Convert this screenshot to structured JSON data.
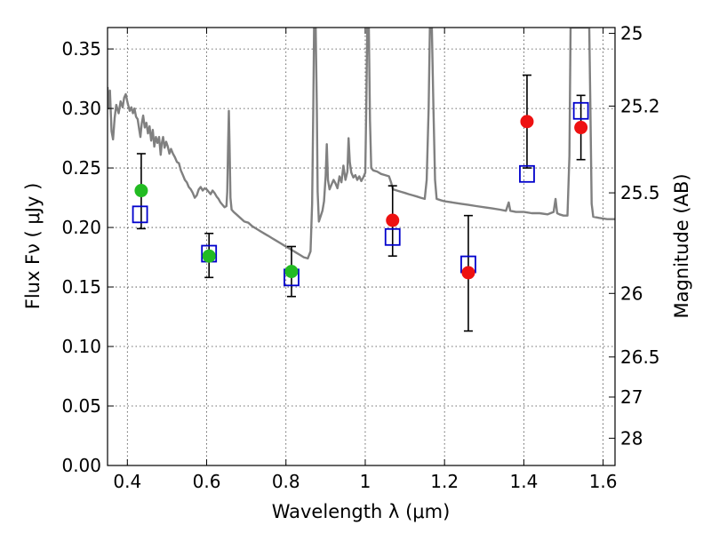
{
  "chart_data": {
    "type": "scatter",
    "title": "",
    "xlabel": "Wavelength  λ (μm)",
    "ylabel": "Flux  Fν  ( μJy )",
    "y2label": "Magnitude (AB)",
    "xlim": [
      0.35,
      1.63
    ],
    "ylim": [
      0.0,
      0.368
    ],
    "grid": true,
    "x_ticks": [
      0.4,
      0.6,
      0.8,
      1.0,
      1.2,
      1.4,
      1.6
    ],
    "x_tick_labels": [
      "0.4",
      "0.6",
      "0.8",
      "1",
      "1.2",
      "1.4",
      "1.6"
    ],
    "y_ticks": [
      0.0,
      0.05,
      0.1,
      0.15,
      0.2,
      0.25,
      0.3,
      0.35
    ],
    "y_tick_labels": [
      "0.00",
      "0.05",
      "0.10",
      "0.15",
      "0.20",
      "0.25",
      "0.30",
      "0.35"
    ],
    "y2_ticks": [
      {
        "label": "25",
        "flux": 0.3631
      },
      {
        "label": "25.2",
        "flux": 0.302
      },
      {
        "label": "25.5",
        "flux": 0.2291
      },
      {
        "label": "26",
        "flux": 0.1446
      },
      {
        "label": "26.5",
        "flux": 0.0912
      },
      {
        "label": "27",
        "flux": 0.0575
      },
      {
        "label": "28",
        "flux": 0.0229
      }
    ],
    "observed": [
      {
        "x": 0.435,
        "y": 0.231,
        "err_low": 0.199,
        "err_high": 0.262,
        "color": "#22bb22"
      },
      {
        "x": 0.606,
        "y": 0.176,
        "err_low": 0.158,
        "err_high": 0.195,
        "color": "#22bb22"
      },
      {
        "x": 0.814,
        "y": 0.163,
        "err_low": 0.142,
        "err_high": 0.184,
        "color": "#22bb22"
      },
      {
        "x": 1.069,
        "y": 0.206,
        "err_low": 0.176,
        "err_high": 0.235,
        "color": "#ee1111"
      },
      {
        "x": 1.26,
        "y": 0.162,
        "err_low": 0.113,
        "err_high": 0.21,
        "color": "#ee1111"
      },
      {
        "x": 1.408,
        "y": 0.289,
        "err_low": 0.25,
        "err_high": 0.328,
        "color": "#ee1111"
      },
      {
        "x": 1.544,
        "y": 0.284,
        "err_low": 0.257,
        "err_high": 0.311,
        "color": "#ee1111"
      }
    ],
    "model": [
      {
        "x": 0.432,
        "y": 0.211
      },
      {
        "x": 0.606,
        "y": 0.178
      },
      {
        "x": 0.814,
        "y": 0.158
      },
      {
        "x": 1.069,
        "y": 0.192
      },
      {
        "x": 1.26,
        "y": 0.169
      },
      {
        "x": 1.408,
        "y": 0.245
      },
      {
        "x": 1.544,
        "y": 0.298
      }
    ],
    "spectrum": [
      [
        0.35,
        0.318
      ],
      [
        0.353,
        0.3
      ],
      [
        0.356,
        0.315
      ],
      [
        0.36,
        0.281
      ],
      [
        0.364,
        0.274
      ],
      [
        0.368,
        0.292
      ],
      [
        0.372,
        0.303
      ],
      [
        0.378,
        0.296
      ],
      [
        0.383,
        0.306
      ],
      [
        0.388,
        0.301
      ],
      [
        0.392,
        0.309
      ],
      [
        0.396,
        0.312
      ],
      [
        0.401,
        0.304
      ],
      [
        0.406,
        0.298
      ],
      [
        0.41,
        0.301
      ],
      [
        0.414,
        0.296
      ],
      [
        0.418,
        0.3
      ],
      [
        0.422,
        0.293
      ],
      [
        0.426,
        0.291
      ],
      [
        0.43,
        0.282
      ],
      [
        0.433,
        0.276
      ],
      [
        0.436,
        0.287
      ],
      [
        0.44,
        0.294
      ],
      [
        0.444,
        0.284
      ],
      [
        0.448,
        0.288
      ],
      [
        0.452,
        0.279
      ],
      [
        0.456,
        0.285
      ],
      [
        0.46,
        0.273
      ],
      [
        0.464,
        0.282
      ],
      [
        0.468,
        0.268
      ],
      [
        0.472,
        0.276
      ],
      [
        0.476,
        0.271
      ],
      [
        0.48,
        0.276
      ],
      [
        0.484,
        0.261
      ],
      [
        0.487,
        0.271
      ],
      [
        0.49,
        0.276
      ],
      [
        0.494,
        0.267
      ],
      [
        0.498,
        0.272
      ],
      [
        0.502,
        0.268
      ],
      [
        0.506,
        0.262
      ],
      [
        0.51,
        0.266
      ],
      [
        0.515,
        0.262
      ],
      [
        0.52,
        0.259
      ],
      [
        0.525,
        0.255
      ],
      [
        0.53,
        0.254
      ],
      [
        0.535,
        0.248
      ],
      [
        0.54,
        0.244
      ],
      [
        0.545,
        0.24
      ],
      [
        0.55,
        0.238
      ],
      [
        0.555,
        0.234
      ],
      [
        0.56,
        0.232
      ],
      [
        0.565,
        0.229
      ],
      [
        0.57,
        0.225
      ],
      [
        0.575,
        0.227
      ],
      [
        0.58,
        0.232
      ],
      [
        0.585,
        0.234
      ],
      [
        0.59,
        0.231
      ],
      [
        0.595,
        0.233
      ],
      [
        0.6,
        0.232
      ],
      [
        0.605,
        0.23
      ],
      [
        0.61,
        0.228
      ],
      [
        0.615,
        0.231
      ],
      [
        0.62,
        0.229
      ],
      [
        0.625,
        0.226
      ],
      [
        0.63,
        0.224
      ],
      [
        0.635,
        0.221
      ],
      [
        0.64,
        0.219
      ],
      [
        0.645,
        0.217
      ],
      [
        0.65,
        0.218
      ],
      [
        0.652,
        0.23
      ],
      [
        0.654,
        0.267
      ],
      [
        0.656,
        0.298
      ],
      [
        0.658,
        0.265
      ],
      [
        0.66,
        0.225
      ],
      [
        0.663,
        0.215
      ],
      [
        0.668,
        0.213
      ],
      [
        0.675,
        0.211
      ],
      [
        0.685,
        0.208
      ],
      [
        0.695,
        0.205
      ],
      [
        0.705,
        0.204
      ],
      [
        0.715,
        0.201
      ],
      [
        0.725,
        0.199
      ],
      [
        0.735,
        0.197
      ],
      [
        0.745,
        0.195
      ],
      [
        0.755,
        0.193
      ],
      [
        0.765,
        0.191
      ],
      [
        0.775,
        0.189
      ],
      [
        0.785,
        0.187
      ],
      [
        0.795,
        0.185
      ],
      [
        0.805,
        0.183
      ],
      [
        0.815,
        0.181
      ],
      [
        0.825,
        0.179
      ],
      [
        0.835,
        0.177
      ],
      [
        0.845,
        0.175
      ],
      [
        0.855,
        0.174
      ],
      [
        0.862,
        0.18
      ],
      [
        0.866,
        0.22
      ],
      [
        0.869,
        0.3
      ],
      [
        0.871,
        0.368
      ],
      [
        0.875,
        0.368
      ],
      [
        0.878,
        0.3
      ],
      [
        0.88,
        0.23
      ],
      [
        0.883,
        0.205
      ],
      [
        0.888,
        0.21
      ],
      [
        0.892,
        0.214
      ],
      [
        0.896,
        0.222
      ],
      [
        0.9,
        0.243
      ],
      [
        0.903,
        0.27
      ],
      [
        0.906,
        0.24
      ],
      [
        0.91,
        0.232
      ],
      [
        0.915,
        0.236
      ],
      [
        0.92,
        0.24
      ],
      [
        0.925,
        0.237
      ],
      [
        0.93,
        0.233
      ],
      [
        0.935,
        0.243
      ],
      [
        0.94,
        0.238
      ],
      [
        0.945,
        0.252
      ],
      [
        0.95,
        0.24
      ],
      [
        0.955,
        0.247
      ],
      [
        0.958,
        0.275
      ],
      [
        0.961,
        0.255
      ],
      [
        0.965,
        0.246
      ],
      [
        0.97,
        0.242
      ],
      [
        0.975,
        0.244
      ],
      [
        0.98,
        0.24
      ],
      [
        0.985,
        0.243
      ],
      [
        0.99,
        0.239
      ],
      [
        0.995,
        0.242
      ],
      [
        1.0,
        0.246
      ],
      [
        1.003,
        0.31
      ],
      [
        1.005,
        0.368
      ],
      [
        1.009,
        0.368
      ],
      [
        1.012,
        0.29
      ],
      [
        1.015,
        0.25
      ],
      [
        1.02,
        0.248
      ],
      [
        1.03,
        0.247
      ],
      [
        1.04,
        0.245
      ],
      [
        1.05,
        0.244
      ],
      [
        1.06,
        0.243
      ],
      [
        1.065,
        0.238
      ],
      [
        1.07,
        0.232
      ],
      [
        1.08,
        0.231
      ],
      [
        1.09,
        0.23
      ],
      [
        1.1,
        0.229
      ],
      [
        1.11,
        0.228
      ],
      [
        1.12,
        0.227
      ],
      [
        1.13,
        0.226
      ],
      [
        1.14,
        0.225
      ],
      [
        1.15,
        0.224
      ],
      [
        1.155,
        0.24
      ],
      [
        1.16,
        0.3
      ],
      [
        1.163,
        0.368
      ],
      [
        1.168,
        0.368
      ],
      [
        1.172,
        0.3
      ],
      [
        1.176,
        0.24
      ],
      [
        1.18,
        0.224
      ],
      [
        1.19,
        0.223
      ],
      [
        1.2,
        0.222
      ],
      [
        1.22,
        0.221
      ],
      [
        1.24,
        0.22
      ],
      [
        1.26,
        0.219
      ],
      [
        1.28,
        0.218
      ],
      [
        1.3,
        0.217
      ],
      [
        1.32,
        0.216
      ],
      [
        1.34,
        0.215
      ],
      [
        1.355,
        0.214
      ],
      [
        1.362,
        0.221
      ],
      [
        1.366,
        0.214
      ],
      [
        1.38,
        0.213
      ],
      [
        1.4,
        0.213
      ],
      [
        1.42,
        0.212
      ],
      [
        1.44,
        0.212
      ],
      [
        1.46,
        0.211
      ],
      [
        1.475,
        0.213
      ],
      [
        1.48,
        0.224
      ],
      [
        1.484,
        0.212
      ],
      [
        1.49,
        0.211
      ],
      [
        1.5,
        0.21
      ],
      [
        1.51,
        0.21
      ],
      [
        1.515,
        0.26
      ],
      [
        1.518,
        0.368
      ],
      [
        1.53,
        0.368
      ],
      [
        1.54,
        0.368
      ],
      [
        1.55,
        0.368
      ],
      [
        1.56,
        0.368
      ],
      [
        1.565,
        0.368
      ],
      [
        1.568,
        0.3
      ],
      [
        1.571,
        0.22
      ],
      [
        1.575,
        0.209
      ],
      [
        1.59,
        0.208
      ],
      [
        1.61,
        0.207
      ],
      [
        1.63,
        0.207
      ]
    ]
  }
}
